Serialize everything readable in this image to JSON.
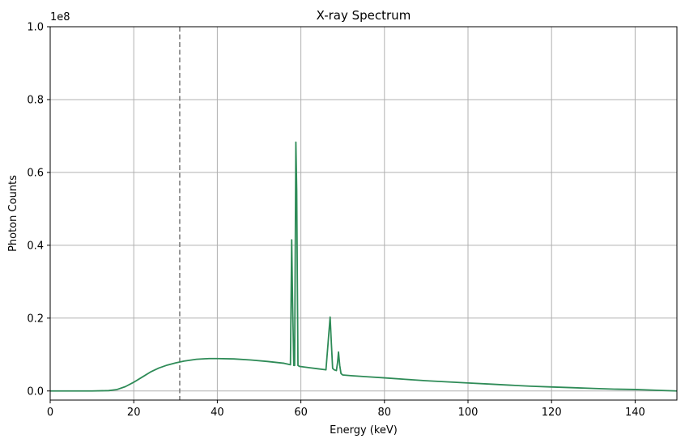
{
  "chart_data": {
    "type": "line",
    "title": "X-ray Spectrum",
    "xlabel": "Energy (keV)",
    "ylabel": "Photon Counts",
    "y_scale_label": "1e8",
    "xlim": [
      0,
      150
    ],
    "ylim": [
      -0.025,
      1.0
    ],
    "x_ticks": [
      0,
      20,
      40,
      60,
      80,
      100,
      120,
      140
    ],
    "x_tick_labels": [
      "0",
      "20",
      "40",
      "60",
      "80",
      "100",
      "120",
      "140"
    ],
    "y_ticks": [
      0.0,
      0.2,
      0.4,
      0.6,
      0.8,
      1.0
    ],
    "y_tick_labels": [
      "0.0",
      "0.2",
      "0.4",
      "0.6",
      "0.8",
      "1.0"
    ],
    "grid": true,
    "line_color": "#2e8b57",
    "vline": {
      "x": 31,
      "color": "#808080",
      "style": "dashed"
    },
    "series": [
      {
        "x": [
          0,
          5,
          10,
          14,
          16,
          18,
          20,
          22,
          24,
          26,
          28,
          30,
          32,
          35,
          38,
          40,
          44,
          48,
          52,
          56,
          57.5,
          57.8,
          58.0,
          58.3,
          58.5,
          58.8,
          59.0,
          59.3,
          59.6,
          59.8,
          60,
          62,
          64,
          66,
          66.5,
          67,
          67.3,
          67.6,
          68,
          68.5,
          68.8,
          69,
          69.3,
          69.6,
          70,
          72,
          76,
          80,
          85,
          90,
          95,
          100,
          105,
          110,
          115,
          120,
          125,
          130,
          135,
          140,
          145,
          150
        ],
        "y": [
          0.0,
          0.0,
          0.0,
          0.001,
          0.004,
          0.012,
          0.024,
          0.038,
          0.052,
          0.063,
          0.071,
          0.077,
          0.082,
          0.087,
          0.089,
          0.089,
          0.088,
          0.085,
          0.081,
          0.076,
          0.072,
          0.415,
          0.25,
          0.07,
          0.07,
          0.683,
          0.55,
          0.07,
          0.068,
          0.067,
          0.067,
          0.064,
          0.061,
          0.058,
          0.13,
          0.203,
          0.13,
          0.062,
          0.058,
          0.056,
          0.08,
          0.107,
          0.07,
          0.048,
          0.044,
          0.042,
          0.039,
          0.036,
          0.032,
          0.028,
          0.025,
          0.022,
          0.019,
          0.016,
          0.013,
          0.011,
          0.009,
          0.007,
          0.005,
          0.004,
          0.002,
          0.0
        ]
      }
    ]
  }
}
